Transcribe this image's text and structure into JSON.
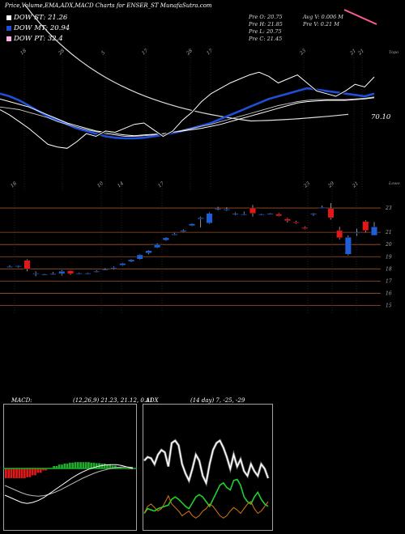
{
  "header": {
    "title": "Price,Volume,EMA,ADX,MACD Charts for ENSER_ST MunafaSutra.com"
  },
  "legend": {
    "items": [
      {
        "label": "DOW ST: 21.26",
        "color": "#ffffff"
      },
      {
        "label": "DOW MT: 20.94",
        "color": "#1f4fd6"
      },
      {
        "label": "DOW PT: 32.4",
        "color": "#ffb0e6"
      }
    ]
  },
  "stats": {
    "col1": [
      "Pre O: 20.75",
      "Pre H: 21.85",
      "Pre L: 20.75",
      "Pre C: 21.45"
    ],
    "col2": [
      "Avg V: 0.006 M",
      "Pre V: 0.21 M"
    ]
  },
  "top_chart": {
    "tag": "Topo",
    "price_label": "70.10",
    "date_labels": [
      "18",
      "28",
      "5",
      "17",
      "28",
      "17",
      "23",
      "21",
      "21"
    ]
  },
  "price_chart": {
    "tag": "Lowo",
    "date_labels": [
      "18",
      "10",
      "14",
      "17",
      "23",
      "29",
      "21"
    ],
    "ticks": [
      "23",
      "21",
      "20",
      "19",
      "18",
      "17",
      "16",
      "15"
    ]
  },
  "macd": {
    "label": "MACD:",
    "params": "(12,26,9) 21.23, 21.12, 0.11"
  },
  "adx": {
    "label": "ADX",
    "params": "(14 day) 7, -25, -29"
  },
  "chart_data": [
    {
      "type": "line",
      "title": "",
      "note": "EMA lines panel",
      "series": [
        {
          "name": "",
          "values": [
            20.2,
            20.0,
            19.7,
            19.3,
            18.9,
            18.5,
            18.2,
            17.9,
            17.6,
            17.4,
            17.2,
            17.0,
            16.9,
            16.85,
            16.85,
            16.9,
            17.0,
            17.1,
            17.25,
            17.4,
            17.6,
            17.8,
            18.0,
            18.3,
            18.6,
            18.9,
            19.2,
            19.5,
            19.8,
            20.0,
            20.2,
            20.4,
            20.6,
            20.5,
            20.4,
            20.3,
            20.2,
            20.1,
            20.0,
            20.2
          ]
        },
        {
          "name": "",
          "values": [
            19.8,
            19.6,
            19.4,
            19.2,
            18.9,
            18.6,
            18.3,
            18.0,
            17.8,
            17.6,
            17.4,
            17.3,
            17.2,
            17.1,
            17.05,
            17.1,
            17.15,
            17.2,
            17.3,
            17.4,
            17.5,
            17.6,
            17.75,
            17.9,
            18.1,
            18.3,
            18.5,
            18.7,
            18.9,
            19.1,
            19.3,
            19.5,
            19.6,
            19.65,
            19.7,
            19.7,
            19.7,
            19.75,
            19.8,
            19.9
          ]
        },
        {
          "name": "",
          "values": [
            19.2,
            19.1,
            19.0,
            18.8,
            18.6,
            18.4,
            18.1,
            17.9,
            17.7,
            17.5,
            17.35,
            17.2,
            17.1,
            17.0,
            17.0,
            17.05,
            17.1,
            17.2,
            17.3,
            17.45,
            17.6,
            17.75,
            17.9,
            18.1,
            18.3,
            18.5,
            18.7,
            18.9,
            19.1,
            19.3,
            19.45,
            19.6,
            19.7,
            19.75,
            19.75,
            19.75,
            19.75,
            19.8,
            19.85,
            19.95
          ]
        },
        {
          "name": "",
          "values": [
            19.0,
            18.6,
            18.1,
            17.6,
            17.0,
            16.4,
            16.2,
            16.1,
            16.6,
            17.2,
            17.0,
            17.4,
            17.3,
            17.6,
            17.9,
            18.0,
            17.5,
            17.0,
            17.4,
            18.2,
            18.8,
            19.6,
            20.2,
            20.6,
            21.0,
            21.3,
            21.6,
            21.8,
            21.5,
            21.0,
            21.3,
            21.6,
            21.0,
            20.4,
            20.2,
            20.0,
            20.4,
            20.9,
            20.7,
            21.45
          ]
        }
      ]
    },
    {
      "type": "candlestick",
      "title": "",
      "ylim": [
        14.5,
        23.8
      ],
      "candles": [
        {
          "o": 18.2,
          "h": 18.3,
          "l": 18.1,
          "c": 18.2
        },
        {
          "o": 18.2,
          "h": 18.3,
          "l": 18.1,
          "c": 18.25
        },
        {
          "o": 18.7,
          "h": 18.8,
          "l": 17.8,
          "c": 18.0
        },
        {
          "o": 17.65,
          "h": 17.8,
          "l": 17.4,
          "c": 17.65
        },
        {
          "o": 17.55,
          "h": 17.6,
          "l": 17.45,
          "c": 17.55
        },
        {
          "o": 17.6,
          "h": 17.75,
          "l": 17.5,
          "c": 17.6
        },
        {
          "o": 17.6,
          "h": 17.9,
          "l": 17.45,
          "c": 17.8
        },
        {
          "o": 17.85,
          "h": 17.9,
          "l": 17.5,
          "c": 17.6
        },
        {
          "o": 17.65,
          "h": 17.7,
          "l": 17.55,
          "c": 17.65
        },
        {
          "o": 17.6,
          "h": 17.7,
          "l": 17.55,
          "c": 17.65
        },
        {
          "o": 17.8,
          "h": 17.9,
          "l": 17.7,
          "c": 17.8
        },
        {
          "o": 17.95,
          "h": 18.05,
          "l": 17.9,
          "c": 17.95
        },
        {
          "o": 18.05,
          "h": 18.2,
          "l": 17.95,
          "c": 18.1
        },
        {
          "o": 18.3,
          "h": 18.5,
          "l": 18.25,
          "c": 18.45
        },
        {
          "o": 18.6,
          "h": 18.8,
          "l": 18.55,
          "c": 18.75
        },
        {
          "o": 18.8,
          "h": 19.2,
          "l": 18.75,
          "c": 19.15
        },
        {
          "o": 19.3,
          "h": 19.55,
          "l": 19.2,
          "c": 19.5
        },
        {
          "o": 19.75,
          "h": 20.1,
          "l": 19.7,
          "c": 20.0
        },
        {
          "o": 20.35,
          "h": 20.6,
          "l": 20.3,
          "c": 20.55
        },
        {
          "o": 20.8,
          "h": 20.95,
          "l": 20.75,
          "c": 20.85
        },
        {
          "o": 21.05,
          "h": 21.25,
          "l": 21.0,
          "c": 21.15
        },
        {
          "o": 21.55,
          "h": 21.75,
          "l": 21.5,
          "c": 21.7
        },
        {
          "o": 22.1,
          "h": 22.3,
          "l": 21.4,
          "c": 22.2
        },
        {
          "o": 21.75,
          "h": 22.65,
          "l": 21.7,
          "c": 22.55
        },
        {
          "o": 22.9,
          "h": 23.1,
          "l": 22.8,
          "c": 22.95
        },
        {
          "o": 22.9,
          "h": 23.05,
          "l": 22.75,
          "c": 22.9
        },
        {
          "o": 22.5,
          "h": 22.65,
          "l": 22.4,
          "c": 22.55
        },
        {
          "o": 22.5,
          "h": 22.7,
          "l": 22.4,
          "c": 22.5
        },
        {
          "o": 23.0,
          "h": 23.25,
          "l": 22.3,
          "c": 22.55
        },
        {
          "o": 22.45,
          "h": 22.55,
          "l": 22.4,
          "c": 22.5
        },
        {
          "o": 22.5,
          "h": 22.6,
          "l": 22.45,
          "c": 22.55
        },
        {
          "o": 22.5,
          "h": 22.6,
          "l": 22.3,
          "c": 22.35
        },
        {
          "o": 22.1,
          "h": 22.2,
          "l": 21.8,
          "c": 21.95
        },
        {
          "o": 21.85,
          "h": 21.95,
          "l": 21.7,
          "c": 21.8
        },
        {
          "o": 21.4,
          "h": 21.5,
          "l": 21.25,
          "c": 21.3
        },
        {
          "o": 22.5,
          "h": 22.6,
          "l": 22.35,
          "c": 22.55
        },
        {
          "o": 23.05,
          "h": 23.2,
          "l": 22.95,
          "c": 23.05
        },
        {
          "o": 22.95,
          "h": 23.4,
          "l": 22.05,
          "c": 22.2
        },
        {
          "o": 21.15,
          "h": 21.45,
          "l": 20.4,
          "c": 20.55
        },
        {
          "o": 19.2,
          "h": 20.75,
          "l": 19.1,
          "c": 20.6
        },
        {
          "o": 21.0,
          "h": 21.3,
          "l": 20.7,
          "c": 21.0
        },
        {
          "o": 21.9,
          "h": 22.0,
          "l": 21.0,
          "c": 21.15
        },
        {
          "o": 20.75,
          "h": 21.85,
          "l": 20.75,
          "c": 21.45
        }
      ]
    },
    {
      "type": "bar",
      "title": "",
      "note": "MACD panel",
      "macd_line": [
        -0.55,
        -0.6,
        -0.65,
        -0.7,
        -0.72,
        -0.7,
        -0.66,
        -0.6,
        -0.52,
        -0.44,
        -0.36,
        -0.28,
        -0.2,
        -0.13,
        -0.07,
        -0.02,
        0.02,
        0.05,
        0.07,
        0.08,
        0.08,
        0.06,
        0.03,
        0.0
      ],
      "signal_line": [
        -0.35,
        -0.4,
        -0.45,
        -0.5,
        -0.54,
        -0.56,
        -0.57,
        -0.56,
        -0.53,
        -0.49,
        -0.44,
        -0.38,
        -0.32,
        -0.26,
        -0.2,
        -0.15,
        -0.1,
        -0.06,
        -0.03,
        0.0,
        0.02,
        0.03,
        0.03,
        0.02
      ],
      "histogram": [
        -0.2,
        -0.2,
        -0.2,
        -0.2,
        -0.18,
        -0.14,
        -0.09,
        -0.04,
        0.01,
        0.05,
        0.08,
        0.1,
        0.12,
        0.13,
        0.13,
        0.13,
        0.12,
        0.11,
        0.1,
        0.08,
        0.06,
        0.03,
        0.0,
        -0.02
      ]
    },
    {
      "type": "line",
      "title": "",
      "note": "ADX panel",
      "ylim": [
        0,
        100
      ],
      "series": [
        {
          "name": "",
          "values": [
            55,
            58,
            57,
            52,
            60,
            64,
            62,
            50,
            70,
            72,
            68,
            52,
            44,
            38,
            48,
            60,
            55,
            42,
            36,
            52,
            64,
            70,
            72,
            66,
            58,
            48,
            60,
            50,
            56,
            46,
            42,
            52,
            46,
            42,
            52,
            48,
            40
          ]
        },
        {
          "name": "",
          "values": [
            10,
            14,
            13,
            12,
            14,
            15,
            16,
            17,
            22,
            24,
            22,
            19,
            16,
            14,
            19,
            24,
            26,
            24,
            20,
            16,
            22,
            28,
            34,
            36,
            32,
            30,
            38,
            39,
            34,
            24,
            20,
            18,
            24,
            28,
            22,
            18,
            16
          ]
        },
        {
          "name": "",
          "values": [
            10,
            16,
            18,
            15,
            12,
            14,
            19,
            25,
            18,
            15,
            12,
            8,
            10,
            12,
            8,
            6,
            8,
            12,
            14,
            18,
            16,
            12,
            8,
            6,
            8,
            12,
            15,
            13,
            10,
            14,
            18,
            20,
            14,
            10,
            12,
            16,
            20
          ]
        }
      ]
    }
  ]
}
